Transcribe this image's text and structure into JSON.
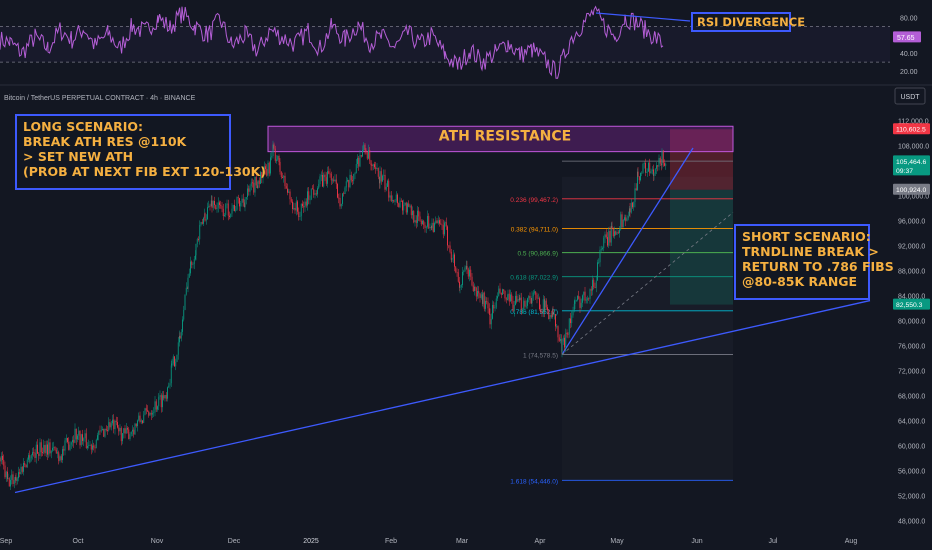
{
  "symbol_line": "Bitcoin / TetherUS PERPETUAL CONTRACT · 4h · BINANCE",
  "currency": "USDT",
  "chart_data": [
    {
      "type": "line",
      "name": "RSI",
      "y_ticks": [
        "80.00",
        "40.00",
        "20.00"
      ],
      "current_label": "57.65",
      "levels": [
        70,
        30
      ],
      "ylim": [
        10,
        95
      ],
      "seed_points": [
        [
          0,
          55
        ],
        [
          10,
          52
        ],
        [
          22,
          40
        ],
        [
          35,
          58
        ],
        [
          48,
          45
        ],
        [
          60,
          66
        ],
        [
          72,
          55
        ],
        [
          84,
          68
        ],
        [
          95,
          48
        ],
        [
          108,
          62
        ],
        [
          120,
          45
        ],
        [
          132,
          70
        ],
        [
          145,
          64
        ],
        [
          158,
          80
        ],
        [
          170,
          68
        ],
        [
          182,
          85
        ],
        [
          195,
          70
        ],
        [
          208,
          60
        ],
        [
          220,
          78
        ],
        [
          232,
          48
        ],
        [
          245,
          60
        ],
        [
          258,
          42
        ],
        [
          270,
          66
        ],
        [
          282,
          58
        ],
        [
          295,
          50
        ],
        [
          308,
          65
        ],
        [
          320,
          45
        ],
        [
          332,
          70
        ],
        [
          345,
          55
        ],
        [
          358,
          72
        ],
        [
          370,
          52
        ],
        [
          382,
          58
        ],
        [
          395,
          46
        ],
        [
          408,
          62
        ],
        [
          420,
          50
        ],
        [
          432,
          60
        ],
        [
          445,
          38
        ],
        [
          458,
          25
        ],
        [
          470,
          44
        ],
        [
          482,
          30
        ],
        [
          495,
          40
        ],
        [
          508,
          52
        ],
        [
          520,
          38
        ],
        [
          532,
          44
        ],
        [
          545,
          32
        ],
        [
          556,
          18
        ],
        [
          562,
          30
        ],
        [
          570,
          55
        ],
        [
          582,
          72
        ],
        [
          594,
          86
        ],
        [
          605,
          70
        ],
        [
          615,
          58
        ],
        [
          625,
          80
        ],
        [
          636,
          75
        ],
        [
          645,
          66
        ],
        [
          655,
          58
        ],
        [
          664,
          48
        ]
      ]
    },
    {
      "type": "candlestick",
      "name": "BTCUSDT Perpetual 4h",
      "x_ticks": [
        "Sep",
        "Oct",
        "Nov",
        "Dec",
        "2025",
        "Feb",
        "Mar",
        "Apr",
        "May",
        "Jun",
        "Jul",
        "Aug"
      ],
      "y_ticks": [
        "112,000.0",
        "108,000.0",
        "104,000.0",
        "100,000.0",
        "96,000.0",
        "92,000.0",
        "88,000.0",
        "84,000.0",
        "80,000.0",
        "76,000.0",
        "72,000.0",
        "68,000.0",
        "64,000.0",
        "60,000.0",
        "56,000.0",
        "52,000.0",
        "48,000.0"
      ],
      "ylim": [
        46500,
        114000
      ],
      "price_labels": [
        {
          "text": "110,602.5",
          "color": "#f23645"
        },
        {
          "text": "105,464.6",
          "sub": "09:37",
          "color": "#089981"
        },
        {
          "text": "100,924.0",
          "color": "#787b86"
        },
        {
          "text": "82,550.3",
          "color": "#089981"
        }
      ],
      "seed_path": [
        [
          0,
          58000
        ],
        [
          8,
          54000
        ],
        [
          16,
          55000
        ],
        [
          30,
          58500
        ],
        [
          45,
          60000
        ],
        [
          60,
          58500
        ],
        [
          75,
          62000
        ],
        [
          90,
          60000
        ],
        [
          110,
          63500
        ],
        [
          125,
          61500
        ],
        [
          140,
          64000
        ],
        [
          155,
          66500
        ],
        [
          165,
          68000
        ],
        [
          172,
          72500
        ],
        [
          180,
          77000
        ],
        [
          188,
          87000
        ],
        [
          196,
          92000
        ],
        [
          205,
          97000
        ],
        [
          212,
          99000
        ],
        [
          222,
          97500
        ],
        [
          232,
          98000
        ],
        [
          245,
          99500
        ],
        [
          258,
          102500
        ],
        [
          268,
          104000
        ],
        [
          274,
          107500
        ],
        [
          280,
          104000
        ],
        [
          290,
          99500
        ],
        [
          300,
          97000
        ],
        [
          310,
          100500
        ],
        [
          320,
          102000
        ],
        [
          330,
          103500
        ],
        [
          340,
          99500
        ],
        [
          350,
          102000
        ],
        [
          360,
          106500
        ],
        [
          366,
          107500
        ],
        [
          372,
          104000
        ],
        [
          380,
          103000
        ],
        [
          390,
          100500
        ],
        [
          400,
          99000
        ],
        [
          410,
          97500
        ],
        [
          420,
          96000
        ],
        [
          432,
          95500
        ],
        [
          445,
          94500
        ],
        [
          452,
          90500
        ],
        [
          460,
          85500
        ],
        [
          467,
          88500
        ],
        [
          475,
          84500
        ],
        [
          483,
          83500
        ],
        [
          490,
          80500
        ],
        [
          500,
          84500
        ],
        [
          508,
          83000
        ],
        [
          520,
          82500
        ],
        [
          532,
          84000
        ],
        [
          545,
          82000
        ],
        [
          553,
          81000
        ],
        [
          558,
          77500
        ],
        [
          562,
          75500
        ],
        [
          568,
          79000
        ],
        [
          575,
          82500
        ],
        [
          585,
          84000
        ],
        [
          595,
          86000
        ],
        [
          600,
          91500
        ],
        [
          612,
          94000
        ],
        [
          622,
          96000
        ],
        [
          630,
          97000
        ],
        [
          638,
          103500
        ],
        [
          646,
          104500
        ],
        [
          654,
          103000
        ],
        [
          662,
          106000
        ],
        [
          666,
          105400
        ]
      ]
    }
  ],
  "fib_levels": [
    {
      "ratio": "0.236",
      "label": "0.236 (99,467.2)",
      "value": 99467.2,
      "color": "#f23645"
    },
    {
      "ratio": "0.382",
      "label": "0.382 (94,711.0)",
      "value": 94711.0,
      "color": "#ff9800"
    },
    {
      "ratio": "0.5",
      "label": "0.5 (90,866.9)",
      "value": 90866.9,
      "color": "#4caf50"
    },
    {
      "ratio": "0.618",
      "label": "0.618 (87,022.9)",
      "value": 87022.9,
      "color": "#089981"
    },
    {
      "ratio": "0.786",
      "label": "0.786 (81,552.7)",
      "value": 81552.7,
      "color": "#00bcd4"
    },
    {
      "ratio": "1",
      "label": "1 (74,578.5)",
      "value": 74578.5,
      "color": "#787b86"
    },
    {
      "ratio": "1.618",
      "label": "1.618 (54,446.0)",
      "value": 54446.0,
      "color": "#2962ff"
    }
  ],
  "ath_resistance": {
    "label": "ATH RESISTANCE",
    "from": 107500,
    "to": 110600
  },
  "trade_box": {
    "stop": 110602.5,
    "entry": 100924.0,
    "target": 82550.3
  },
  "annotations": {
    "rsi_divergence": "RSI DIVERGENCE",
    "long_scenario": "LONG SCENARIO:\nBREAK ATH RES @110K\n> SET NEW ATH\n(PROB AT NEXT FIB EXT 120-130K)",
    "short_scenario": "SHORT SCENARIO:\nTRNDLINE BREAK >\nRETURN TO .786 FIBS\n@80-85K RANGE"
  },
  "colors": {
    "up": "#089981",
    "down": "#f23645",
    "rsi": "#b45ed6",
    "trend": "#3d5afe",
    "accent": "#f5b041",
    "ath_zone": "#9c27b0"
  }
}
